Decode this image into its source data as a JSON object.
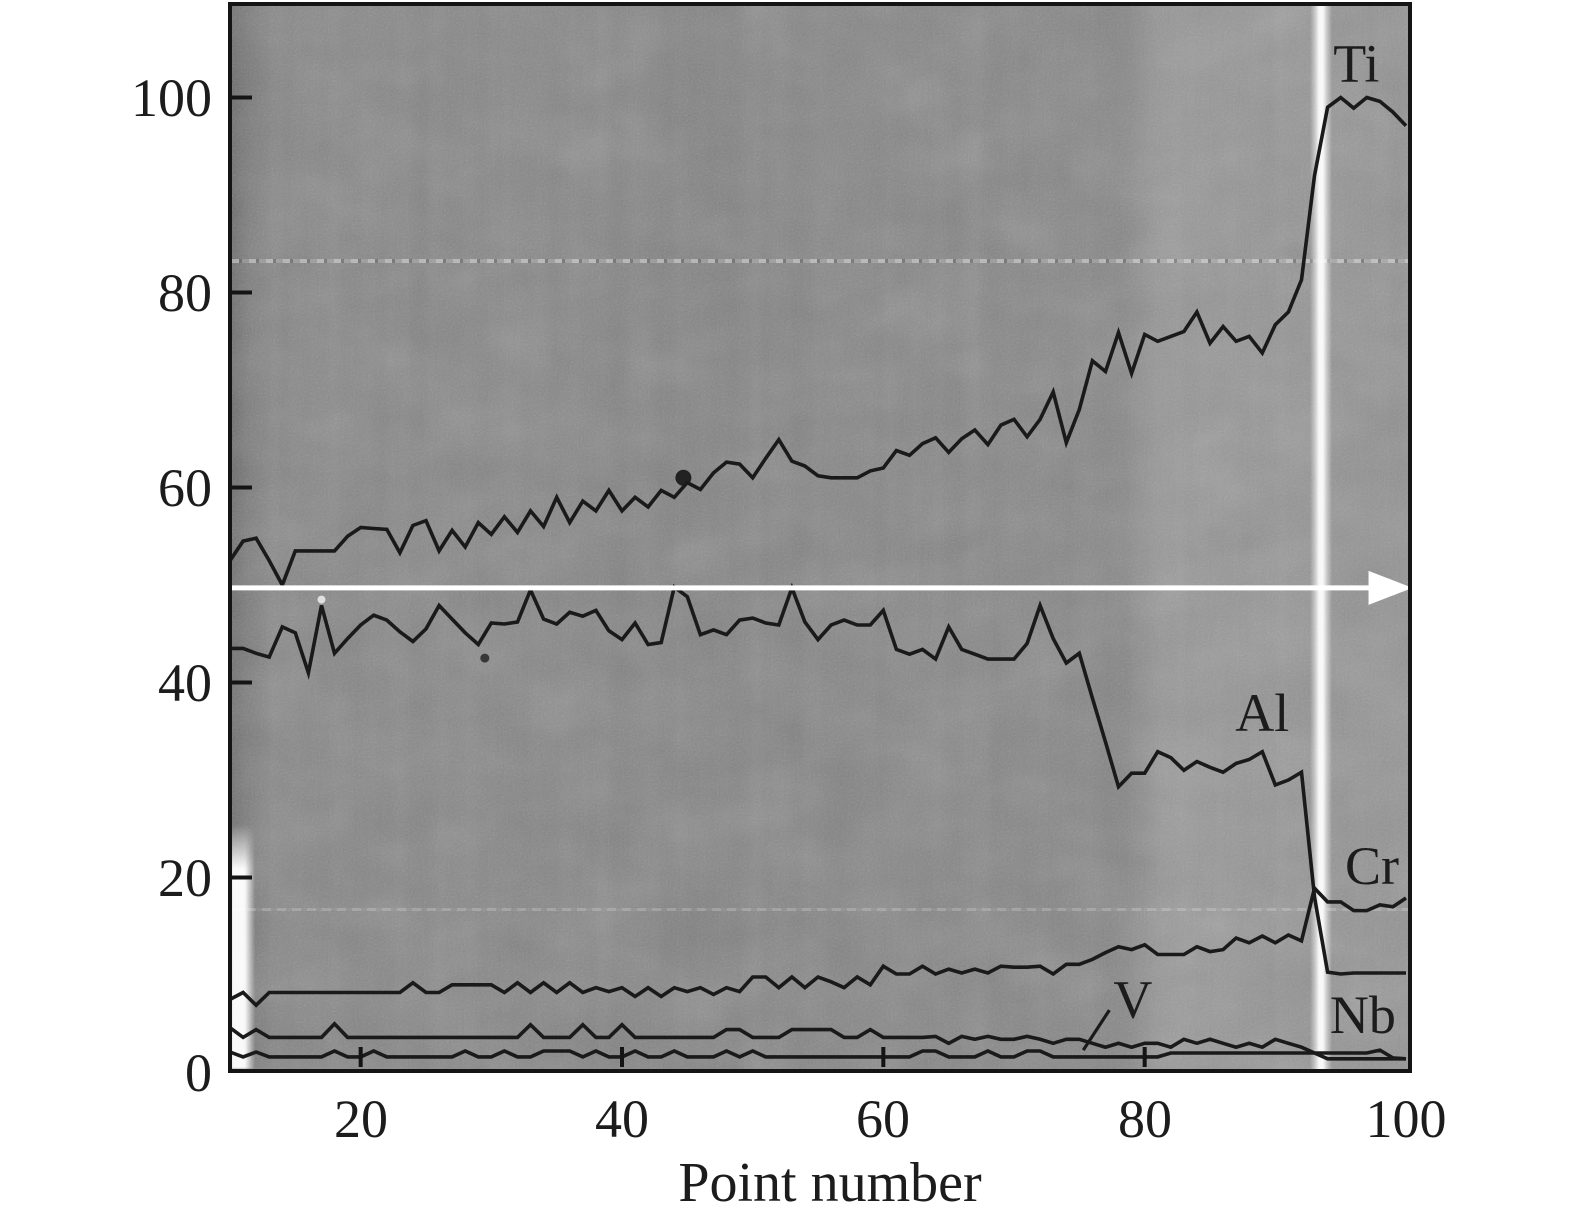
{
  "colors": {
    "curve": "#1a1a1a",
    "axis": "#141414",
    "text": "#1c1c1c",
    "field_gray": "#828282",
    "right_band_gray": "#989898",
    "left_edge_dark": "#686868",
    "bright_streak": "#fdfdfd",
    "arrow": "#ffffff",
    "page_background": "#ffffff"
  },
  "chart_data": {
    "type": "line",
    "title": "",
    "xlabel": "Point number",
    "ylabel": "",
    "xlim": [
      10,
      100
    ],
    "ylim": [
      0,
      110
    ],
    "grid": false,
    "legend_position": "inline-annotations",
    "x_start": 10,
    "x_step": 1,
    "x_ticks": [
      20,
      40,
      60,
      80
    ],
    "x_tick_labels": [
      "20",
      "40",
      "60",
      "80",
      "100"
    ],
    "x_tick_label_positions": [
      20,
      40,
      60,
      80,
      100
    ],
    "y_ticks": [
      20,
      40,
      60,
      80,
      100
    ],
    "y_tick_labels": [
      "0",
      "20",
      "40",
      "60",
      "80",
      "100"
    ],
    "y_tick_label_positions": [
      0,
      20,
      40,
      60,
      80,
      100
    ],
    "series": [
      {
        "name": "Ti",
        "values": [
          52.5,
          54.5,
          54.8,
          52.5,
          50.0,
          53.5,
          53.5,
          53.5,
          53.5,
          55.0,
          55.9,
          55.8,
          55.7,
          53.3,
          56.1,
          56.6,
          53.5,
          55.6,
          53.9,
          56.4,
          55.2,
          57.0,
          55.4,
          57.6,
          56.0,
          59.0,
          56.4,
          58.6,
          57.6,
          59.7,
          57.6,
          59.0,
          58.0,
          59.7,
          59.0,
          60.5,
          59.8,
          61.5,
          62.6,
          62.4,
          61.0,
          63.0,
          64.9,
          62.7,
          62.2,
          61.2,
          61.0,
          61.0,
          61.0,
          61.7,
          62.0,
          63.8,
          63.3,
          64.5,
          65.1,
          63.6,
          65.0,
          65.9,
          64.4,
          66.4,
          67.0,
          65.2,
          67.0,
          69.8,
          64.6,
          68.0,
          73.0,
          71.9,
          75.9,
          71.7,
          75.7,
          75.0,
          75.5,
          76.0,
          78.0,
          74.8,
          76.5,
          75.0,
          75.5,
          73.8,
          76.7,
          78.0,
          81.3,
          92.0,
          99.0,
          100.0,
          98.9,
          100.0,
          99.6,
          98.5,
          97.1
        ]
      },
      {
        "name": "Al",
        "values": [
          43.5,
          43.5,
          43.0,
          42.6,
          45.7,
          45.1,
          41.0,
          47.9,
          43.0,
          44.5,
          45.9,
          46.9,
          46.4,
          45.2,
          44.2,
          45.5,
          47.9,
          46.5,
          45.1,
          43.9,
          46.1,
          46.0,
          46.2,
          49.5,
          46.5,
          46.0,
          47.2,
          46.8,
          47.4,
          45.3,
          44.4,
          46.1,
          43.9,
          44.1,
          49.8,
          48.8,
          44.9,
          45.4,
          44.9,
          46.4,
          46.6,
          46.1,
          45.9,
          49.7,
          46.2,
          44.4,
          45.9,
          46.4,
          45.9,
          45.9,
          47.4,
          43.4,
          42.9,
          43.4,
          42.4,
          45.7,
          43.4,
          42.9,
          42.4,
          42.4,
          42.4,
          44.0,
          47.9,
          44.5,
          42.0,
          43.0,
          38.4,
          33.9,
          29.3,
          30.7,
          30.7,
          32.9,
          32.3,
          31.0,
          31.9,
          31.3,
          30.8,
          31.7,
          32.1,
          32.9,
          29.5,
          30.0,
          30.8,
          18.0,
          10.3,
          10.1,
          10.2,
          10.2,
          10.2,
          10.2,
          10.2
        ]
      },
      {
        "name": "Cr",
        "values": [
          7.5,
          8.2,
          6.9,
          8.2,
          8.2,
          8.2,
          8.2,
          8.2,
          8.2,
          8.2,
          8.2,
          8.2,
          8.2,
          8.2,
          9.2,
          8.2,
          8.2,
          9.0,
          9.0,
          9.0,
          9.0,
          8.2,
          9.2,
          8.2,
          9.2,
          8.2,
          9.2,
          8.2,
          8.7,
          8.3,
          8.7,
          7.8,
          8.7,
          7.8,
          8.7,
          8.3,
          8.7,
          8.0,
          8.7,
          8.3,
          9.8,
          9.8,
          8.7,
          9.8,
          8.7,
          9.8,
          9.3,
          8.7,
          9.8,
          9.0,
          10.9,
          10.1,
          10.1,
          10.9,
          10.1,
          10.6,
          10.2,
          10.6,
          10.2,
          10.9,
          10.8,
          10.8,
          10.9,
          10.1,
          11.1,
          11.1,
          11.6,
          12.3,
          12.9,
          12.6,
          13.1,
          12.1,
          12.1,
          12.1,
          12.9,
          12.4,
          12.6,
          13.8,
          13.3,
          14.0,
          13.3,
          14.1,
          13.5,
          18.9,
          17.5,
          17.5,
          16.6,
          16.6,
          17.2,
          17.0,
          17.9
        ]
      },
      {
        "name": "V",
        "values": [
          4.6,
          3.6,
          4.4,
          3.6,
          3.6,
          3.6,
          3.6,
          3.6,
          5.0,
          3.6,
          3.6,
          3.6,
          3.6,
          3.6,
          3.6,
          3.6,
          3.6,
          3.6,
          3.6,
          3.6,
          3.6,
          3.6,
          3.6,
          4.9,
          3.6,
          3.6,
          3.6,
          4.9,
          3.6,
          3.6,
          4.9,
          3.6,
          3.6,
          3.6,
          3.6,
          3.6,
          3.6,
          3.6,
          4.4,
          4.4,
          3.6,
          3.6,
          3.6,
          4.4,
          4.4,
          4.4,
          4.4,
          3.6,
          3.6,
          4.4,
          3.6,
          3.6,
          3.6,
          3.6,
          3.7,
          3.0,
          3.7,
          3.4,
          3.7,
          3.4,
          3.4,
          3.7,
          3.4,
          3.0,
          3.4,
          3.4,
          3.0,
          2.6,
          3.0,
          2.6,
          3.0,
          3.0,
          2.6,
          3.4,
          3.0,
          3.4,
          3.0,
          2.6,
          3.0,
          2.6,
          3.4,
          3.0,
          2.6,
          2.0,
          1.4,
          1.4,
          1.4,
          1.4,
          1.4,
          1.4,
          1.4
        ]
      },
      {
        "name": "Nb",
        "values": [
          2.1,
          1.6,
          2.1,
          1.6,
          1.6,
          1.6,
          1.6,
          1.6,
          2.2,
          1.6,
          1.6,
          2.2,
          1.6,
          1.6,
          1.6,
          1.6,
          1.6,
          1.6,
          2.2,
          1.6,
          1.6,
          2.2,
          1.6,
          1.6,
          2.2,
          2.2,
          2.2,
          1.6,
          2.2,
          1.6,
          1.6,
          2.2,
          1.6,
          1.6,
          2.2,
          1.6,
          1.6,
          1.6,
          2.2,
          1.6,
          2.2,
          1.6,
          1.6,
          1.6,
          1.6,
          1.6,
          1.6,
          1.6,
          1.6,
          1.6,
          1.6,
          1.6,
          1.6,
          2.2,
          2.2,
          1.6,
          1.6,
          1.6,
          2.2,
          1.6,
          1.6,
          2.2,
          2.2,
          1.6,
          1.6,
          1.6,
          1.6,
          1.6,
          1.6,
          1.6,
          1.6,
          1.6,
          2.0,
          2.0,
          2.0,
          2.0,
          2.0,
          2.0,
          2.0,
          2.0,
          2.0,
          2.0,
          2.0,
          2.0,
          2.0,
          2.0,
          2.0,
          2.0,
          2.3,
          1.5,
          1.4
        ]
      }
    ],
    "annotations": [
      {
        "text": "Ti",
        "x": 96.2,
        "y": 103.6
      },
      {
        "text": "Al",
        "x": 89.0,
        "y": 37.0
      },
      {
        "text": "Cr",
        "x": 97.4,
        "y": 21.3
      },
      {
        "text": "V",
        "x": 79.1,
        "y": 7.6,
        "leader": {
          "x1": 77.3,
          "y1": 6.4,
          "x2": 75.3,
          "y2": 2.3
        }
      },
      {
        "text": "Nb",
        "x": 96.7,
        "y": 6.0
      }
    ],
    "arrow": {
      "y_value": 49.7,
      "x_start": 10,
      "x_end": 100.5,
      "color": "#ffffff",
      "description": "white horizontal line-scan arrow pointing right"
    },
    "specks": [
      {
        "x": 44.7,
        "y": 61.0,
        "r": 8,
        "color": "#161616"
      },
      {
        "x": 29.5,
        "y": 42.5,
        "r": 4.5,
        "color": "#2e2e2e"
      },
      {
        "x": 17.0,
        "y": 48.5,
        "r": 4,
        "color": "#e9e9e9"
      }
    ]
  }
}
